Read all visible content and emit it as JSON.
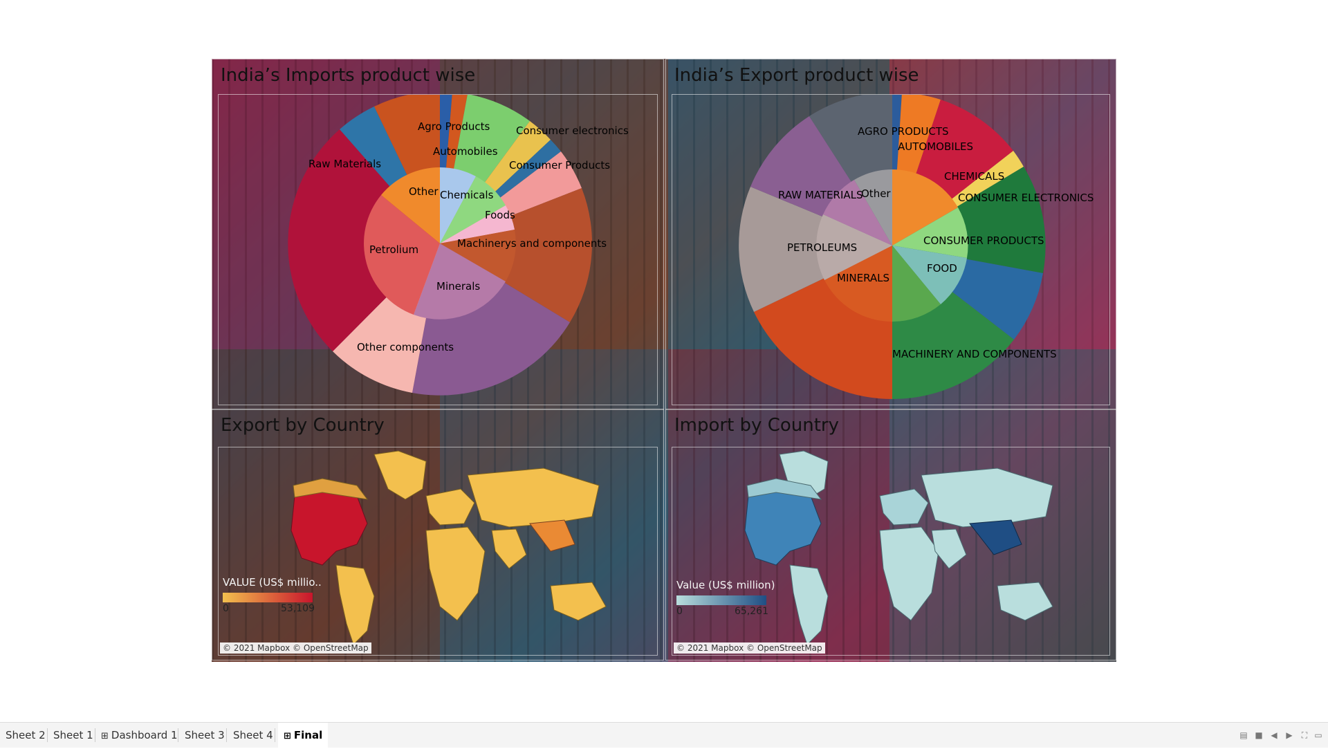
{
  "panels": {
    "imports_product": {
      "title": "India’s Imports product wise",
      "labels": {
        "agro": "Agro Products",
        "automobiles": "Automobiles",
        "consumer_electronics": "Consumer electronics",
        "consumer_products": "Consumer Products",
        "raw_materials": "Raw Materials",
        "other": "Other",
        "chemicals": "Chemicals",
        "foods": "Foods",
        "petrolium": "Petrolium",
        "machinery": "Machinerys and components",
        "minerals": "Minerals",
        "other_components": "Other components"
      }
    },
    "exports_product": {
      "title": "India’s Export product wise",
      "labels": {
        "agro": "AGRO PRODUCTS",
        "automobiles": "AUTOMOBILES",
        "chemicals": "CHEMICALS",
        "consumer_electronics": "CONSUMER ELECTRONICS",
        "raw_materials": "RAW MATERIALS",
        "other": "Other",
        "petroleums": "PETROLEUMS",
        "consumer_products": "CONSUMER PRODUCTS",
        "food": "FOOD",
        "minerals": "MINERALS",
        "machinery": "MACHINERY AND COMPONENTS"
      }
    },
    "export_country": {
      "title": "Export by Country",
      "legend_title": "VALUE (US$ millio..",
      "legend_min": "0",
      "legend_max": "53,109",
      "legend_colors": [
        "#f3c04e",
        "#c8152c"
      ],
      "attribution": "© 2021 Mapbox © OpenStreetMap"
    },
    "import_country": {
      "title": "Import by Country",
      "legend_title": "Value (US$ million)",
      "legend_min": "0",
      "legend_max": "65,261",
      "legend_colors": [
        "#b9dedd",
        "#1f4e84"
      ],
      "attribution": "© 2021 Mapbox © OpenStreetMap"
    }
  },
  "tabs": [
    {
      "label": "Sheet 2",
      "type": "sheet"
    },
    {
      "label": "Sheet 1",
      "type": "sheet"
    },
    {
      "label": "Dashboard 1",
      "type": "dashboard"
    },
    {
      "label": "Sheet 3",
      "type": "sheet"
    },
    {
      "label": "Sheet 4",
      "type": "sheet"
    },
    {
      "label": "Final",
      "type": "dashboard",
      "active": true
    }
  ],
  "icons": {
    "dashboard_tab_icon": "grid-icon",
    "controls": [
      "sheet-sorter-icon",
      "filmstrip-icon",
      "previous-icon",
      "next-icon",
      "fullscreen-icon",
      "present-icon"
    ]
  }
}
